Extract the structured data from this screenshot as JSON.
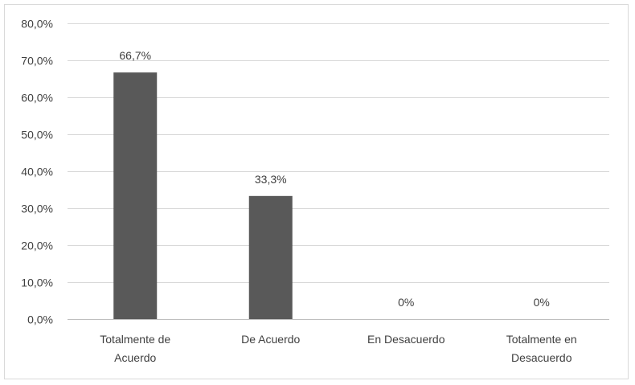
{
  "chart_data": {
    "type": "bar",
    "categories": [
      [
        "Totalmente de",
        "Acuerdo"
      ],
      [
        "De Acuerdo"
      ],
      [
        "En Desacuerdo"
      ],
      [
        "Totalmente en",
        "Desacuerdo"
      ]
    ],
    "values": [
      66.7,
      33.3,
      0,
      0
    ],
    "data_labels": [
      "66,7%",
      "33,3%",
      "0%",
      "0%"
    ],
    "ylim": [
      0,
      80
    ],
    "yticks": [
      0,
      10,
      20,
      30,
      40,
      50,
      60,
      70,
      80
    ],
    "ytick_labels": [
      "0,0%",
      "10,0%",
      "20,0%",
      "30,0%",
      "40,0%",
      "50,0%",
      "60,0%",
      "70,0%",
      "80,0%"
    ],
    "title": "",
    "xlabel": "",
    "ylabel": "",
    "grid": true,
    "legend": "none",
    "bar_color": "#595959"
  }
}
